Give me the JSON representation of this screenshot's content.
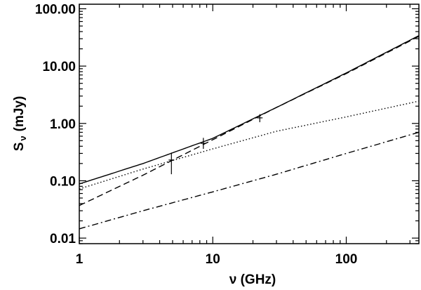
{
  "chart_data": {
    "type": "line",
    "xlabel": "ν (GHz)",
    "ylabel": "S",
    "ylabel_subscript": "ν",
    "ylabel_unit": "(mJy)",
    "xscale": "log",
    "yscale": "log",
    "xlim": [
      1,
      350
    ],
    "ylim": [
      0.008,
      120
    ],
    "x_ticks": [
      {
        "value": 1,
        "label": "1"
      },
      {
        "value": 10,
        "label": "10"
      },
      {
        "value": 100,
        "label": "100"
      }
    ],
    "y_ticks": [
      {
        "value": 0.01,
        "label": "0.01"
      },
      {
        "value": 0.1,
        "label": "0.10"
      },
      {
        "value": 1,
        "label": "1.00"
      },
      {
        "value": 10,
        "label": "10.00"
      },
      {
        "value": 100,
        "label": "100.00"
      }
    ],
    "series": [
      {
        "style": "solid",
        "x": [
          1,
          3,
          10,
          30,
          100,
          350
        ],
        "y": [
          0.088,
          0.2,
          0.55,
          1.9,
          7.6,
          34
        ]
      },
      {
        "style": "dashed",
        "x": [
          1,
          3,
          10,
          30,
          100,
          350
        ],
        "y": [
          0.037,
          0.125,
          0.52,
          1.9,
          7.4,
          33
        ]
      },
      {
        "style": "dotted",
        "x": [
          1,
          3,
          10,
          30,
          100,
          350
        ],
        "y": [
          0.072,
          0.16,
          0.36,
          0.73,
          1.3,
          2.45
        ]
      },
      {
        "style": "dashdot",
        "x": [
          1,
          3,
          10,
          30,
          100,
          350
        ],
        "y": [
          0.0145,
          0.03,
          0.064,
          0.13,
          0.3,
          0.7
        ]
      }
    ],
    "data_points": [
      {
        "x": 4.9,
        "y": 0.23,
        "ylow": 0.13,
        "yhigh": 0.31
      },
      {
        "x": 8.5,
        "y": 0.45,
        "ylow": 0.36,
        "yhigh": 0.56
      },
      {
        "x": 22.5,
        "y": 1.25,
        "ylow": 1.05,
        "yhigh": 1.45
      }
    ],
    "grid": false,
    "legend": "none"
  }
}
